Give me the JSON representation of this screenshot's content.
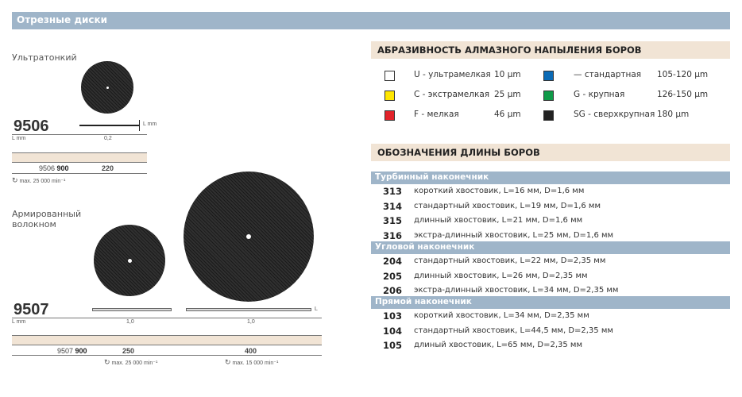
{
  "title": "Отрезные диски",
  "left": {
    "ultrathin": {
      "label": "Ультратонкий",
      "code": "9506",
      "lmm": "L mm",
      "l_label": "L mm",
      "thickness": "0,2",
      "order_prefix": "9506",
      "order_bold": "900",
      "size": "220",
      "speed": "max. 25 000 min⁻¹"
    },
    "reinforced": {
      "label_line1": "Армированный",
      "label_line2": "волокном",
      "code": "9507",
      "lmm": "L mm",
      "l_label": "L",
      "thickness1": "1,0",
      "thickness2": "1,0",
      "order_prefix": "9507",
      "order_bold": "900",
      "size1": "250",
      "size2": "400",
      "speed1": "max. 25 000 min⁻¹",
      "speed2": "max. 15 000 min⁻¹"
    }
  },
  "abrasive": {
    "title": "АБРАЗИВНОСТЬ АЛМАЗНОГО НАПЫЛЕНИЯ БОРОВ",
    "items": [
      {
        "color": "#ffffff",
        "label": "U - ультрамелкая",
        "value": "10 µm"
      },
      {
        "color": "#ffe600",
        "label": "C - экстрамелкая",
        "value": "25 µm"
      },
      {
        "color": "#e3232a",
        "label": "F - мелкая",
        "value": "46 µm"
      },
      {
        "color": "#0a6ab5",
        "label": "—  стандартная",
        "value": "105-120 µm"
      },
      {
        "color": "#0f9a48",
        "label": "G - крупная",
        "value": "126-150 µm"
      },
      {
        "color": "#222222",
        "label": "SG - сверхкрупная",
        "value": "180 µm"
      }
    ]
  },
  "lengths": {
    "title": "ОБОЗНАЧЕНИЯ ДЛИНЫ БОРОВ",
    "sections": [
      {
        "name": "Турбинный наконечник",
        "rows": [
          {
            "code": "313",
            "text": "короткий хвостовик, L=16 мм, D=1,6 мм"
          },
          {
            "code": "314",
            "text": "стандартный хвостовик, L=19 мм, D=1,6 мм"
          },
          {
            "code": "315",
            "text": "длинный хвостовик, L=21 мм, D=1,6 мм"
          },
          {
            "code": "316",
            "text": "экстра-длинный хвостовик, L=25 мм, D=1,6 мм"
          }
        ]
      },
      {
        "name": "Угловой наконечник",
        "rows": [
          {
            "code": "204",
            "text": "стандартный хвостовик, L=22 мм, D=2,35 мм"
          },
          {
            "code": "205",
            "text": "длинный хвостовик, L=26 мм, D=2,35 мм"
          },
          {
            "code": "206",
            "text": "экстра-длинный хвостовик, L=34 мм, D=2,35 мм"
          }
        ]
      },
      {
        "name": "Прямой наконечник",
        "rows": [
          {
            "code": "103",
            "text": "короткий хвостовик, L=34 мм, D=2,35 мм"
          },
          {
            "code": "104",
            "text": "стандартный хвостовик, L=44,5 мм, D=2,35 мм"
          },
          {
            "code": "105",
            "text": "длиный хвостовик, L=65 мм, D=2,35 мм"
          }
        ]
      }
    ]
  }
}
